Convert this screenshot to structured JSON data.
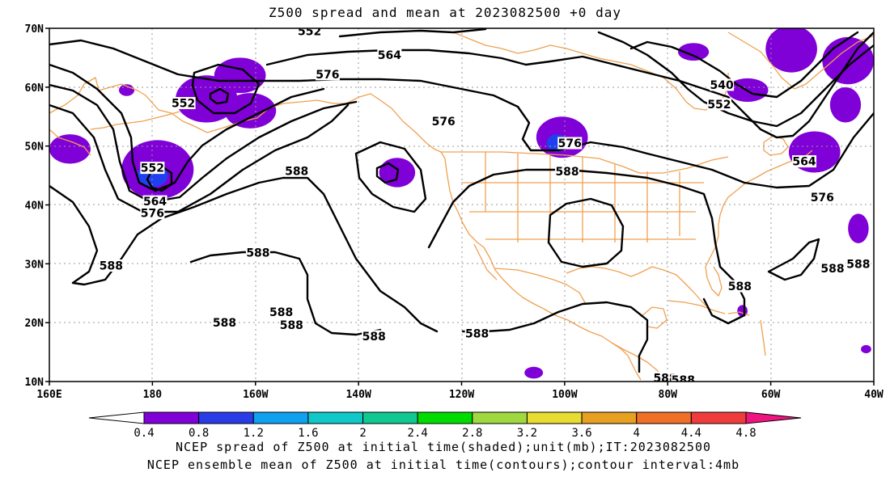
{
  "title": "Z500 spread and mean at 2023082500 +0 day",
  "map": {
    "lon_range": [
      160,
      320
    ],
    "lat_range": [
      10,
      70
    ],
    "lon_labels": [
      {
        "lon": 160,
        "text": "160E"
      },
      {
        "lon": 180,
        "text": "180"
      },
      {
        "lon": 200,
        "text": "160W"
      },
      {
        "lon": 220,
        "text": "140W"
      },
      {
        "lon": 240,
        "text": "120W"
      },
      {
        "lon": 260,
        "text": "100W"
      },
      {
        "lon": 280,
        "text": "80W"
      },
      {
        "lon": 300,
        "text": "60W"
      },
      {
        "lon": 320,
        "text": "40W"
      }
    ],
    "lat_labels": [
      {
        "lat": 10,
        "text": "10N"
      },
      {
        "lat": 20,
        "text": "20N"
      },
      {
        "lat": 30,
        "text": "30N"
      },
      {
        "lat": 40,
        "text": "40N"
      },
      {
        "lat": 50,
        "text": "50N"
      },
      {
        "lat": 60,
        "text": "60N"
      },
      {
        "lat": 70,
        "text": "70N"
      }
    ],
    "coastline_color": "#f0a050",
    "contour_color": "#000000",
    "contour_labels": [
      {
        "text": "552",
        "lon": 210.5,
        "lat": 69.5
      },
      {
        "text": "564",
        "lon": 226,
        "lat": 65.5
      },
      {
        "text": "576",
        "lon": 214,
        "lat": 62.2
      },
      {
        "text": "552",
        "lon": 186,
        "lat": 57.3
      },
      {
        "text": "576",
        "lon": 236.5,
        "lat": 54.2
      },
      {
        "text": "540",
        "lon": 290.5,
        "lat": 60.4
      },
      {
        "text": "552",
        "lon": 290,
        "lat": 57.1
      },
      {
        "text": "576",
        "lon": 261,
        "lat": 50.5
      },
      {
        "text": "564",
        "lon": 306.5,
        "lat": 47.4
      },
      {
        "text": "552",
        "lon": 180,
        "lat": 46.3
      },
      {
        "text": "588",
        "lon": 208,
        "lat": 45.8
      },
      {
        "text": "588",
        "lon": 260.5,
        "lat": 45.7
      },
      {
        "text": "564",
        "lon": 180.5,
        "lat": 40.6
      },
      {
        "text": "576",
        "lon": 180,
        "lat": 38.6
      },
      {
        "text": "576",
        "lon": 310,
        "lat": 41.3
      },
      {
        "text": "588",
        "lon": 172,
        "lat": 29.7
      },
      {
        "text": "588",
        "lon": 200.5,
        "lat": 31.9
      },
      {
        "text": "588",
        "lon": 317,
        "lat": 30.0
      },
      {
        "text": "588",
        "lon": 312,
        "lat": 29.2
      },
      {
        "text": "588",
        "lon": 294,
        "lat": 26.2
      },
      {
        "text": "588",
        "lon": 205,
        "lat": 21.8
      },
      {
        "text": "588",
        "lon": 194,
        "lat": 20.0
      },
      {
        "text": "588",
        "lon": 207,
        "lat": 19.6
      },
      {
        "text": "588",
        "lon": 223,
        "lat": 17.7
      },
      {
        "text": "588",
        "lon": 243,
        "lat": 18.2
      },
      {
        "text": "588",
        "lon": 279.5,
        "lat": 10.6
      },
      {
        "text": "588",
        "lon": 283,
        "lat": 10.3
      }
    ],
    "spread_blobs": [
      {
        "lon": 181,
        "lat": 46,
        "rx": 7,
        "ry": 5,
        "color": "#8000d8"
      },
      {
        "lon": 180,
        "lat": 45,
        "rx": 3,
        "ry": 2,
        "color": "#2040f0"
      },
      {
        "lon": 190.5,
        "lat": 58,
        "rx": 6,
        "ry": 4,
        "color": "#8000d8"
      },
      {
        "lon": 197,
        "lat": 62,
        "rx": 5,
        "ry": 3,
        "color": "#8000d8"
      },
      {
        "lon": 199,
        "lat": 56,
        "rx": 5,
        "ry": 3,
        "color": "#8000d8"
      },
      {
        "lon": 164,
        "lat": 49.5,
        "rx": 4,
        "ry": 2.5,
        "color": "#8000d8"
      },
      {
        "lon": 175,
        "lat": 59.5,
        "rx": 1.5,
        "ry": 1,
        "color": "#8000d8"
      },
      {
        "lon": 227.5,
        "lat": 45.5,
        "rx": 3.5,
        "ry": 2.5,
        "color": "#8000d8"
      },
      {
        "lon": 259.5,
        "lat": 51.5,
        "rx": 5,
        "ry": 3.5,
        "color": "#8000d8"
      },
      {
        "lon": 258.5,
        "lat": 50.5,
        "rx": 2,
        "ry": 1.5,
        "color": "#2040f0"
      },
      {
        "lon": 295.5,
        "lat": 59.5,
        "rx": 4,
        "ry": 2,
        "color": "#8000d8"
      },
      {
        "lon": 304,
        "lat": 66.5,
        "rx": 5,
        "ry": 4,
        "color": "#8000d8"
      },
      {
        "lon": 315,
        "lat": 64.5,
        "rx": 5,
        "ry": 4,
        "color": "#8000d8"
      },
      {
        "lon": 308.5,
        "lat": 49,
        "rx": 5,
        "ry": 3.5,
        "color": "#8000d8"
      },
      {
        "lon": 314.5,
        "lat": 57,
        "rx": 3,
        "ry": 3,
        "color": "#8000d8"
      },
      {
        "lon": 317,
        "lat": 36,
        "rx": 2,
        "ry": 2.5,
        "color": "#8000d8"
      },
      {
        "lon": 254,
        "lat": 11.5,
        "rx": 1.8,
        "ry": 1,
        "color": "#8000d8"
      },
      {
        "lon": 294.5,
        "lat": 22,
        "rx": 1,
        "ry": 1,
        "color": "#8000d8"
      },
      {
        "lon": 318.5,
        "lat": 15.5,
        "rx": 1,
        "ry": 0.7,
        "color": "#8000d8"
      },
      {
        "lon": 285,
        "lat": 66,
        "rx": 3,
        "ry": 1.5,
        "color": "#8000d8"
      }
    ]
  },
  "colorbar": {
    "labels": [
      "0.4",
      "0.8",
      "1.2",
      "1.6",
      "2",
      "2.4",
      "2.8",
      "3.2",
      "3.6",
      "4",
      "4.4",
      "4.8"
    ],
    "colors": [
      "#ffffff",
      "#8000d8",
      "#2a3ce8",
      "#10a0f0",
      "#10c8c8",
      "#10c890",
      "#00dc00",
      "#a0d840",
      "#e8dc30",
      "#e8a020",
      "#f07028",
      "#f03c3c",
      "#f01480"
    ]
  },
  "caption": {
    "line1": "NCEP spread of Z500 at initial time(shaded);unit(mb);IT:2023082500",
    "line2": "NCEP ensemble mean of Z500 at initial time(contours);contour interval:4mb"
  }
}
